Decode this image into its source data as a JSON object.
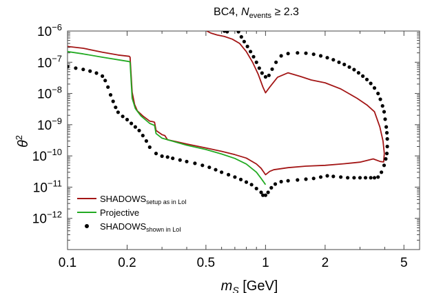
{
  "chart_data": {
    "type": "line",
    "title_parts": [
      "BC4, ",
      "N",
      "events",
      " ≥ 2.3"
    ],
    "xlabel_parts": [
      "m",
      "S",
      " [GeV]"
    ],
    "ylabel_parts": [
      "θ",
      "2"
    ],
    "xscale": "log",
    "yscale": "log",
    "xlim": [
      0.1,
      6.0
    ],
    "ylim": [
      1e-13,
      1e-06
    ],
    "grid": false,
    "legend_position": "bottom-left",
    "x_ticks": [
      {
        "value": 0.1,
        "label": "0.1"
      },
      {
        "value": 0.2,
        "label": "0.2"
      },
      {
        "value": 0.5,
        "label": "0.5"
      },
      {
        "value": 1,
        "label": "1"
      },
      {
        "value": 2,
        "label": "2"
      },
      {
        "value": 5,
        "label": "5"
      }
    ],
    "y_ticks": [
      {
        "value": 1e-12,
        "base": "10",
        "exp": "−12"
      },
      {
        "value": 1e-11,
        "base": "10",
        "exp": "−11"
      },
      {
        "value": 1e-10,
        "base": "10",
        "exp": "−10"
      },
      {
        "value": 1e-09,
        "base": "10",
        "exp": "−9"
      },
      {
        "value": 1e-08,
        "base": "10",
        "exp": "−8"
      },
      {
        "value": 1e-07,
        "base": "10",
        "exp": "−7"
      },
      {
        "value": 1e-06,
        "base": "10",
        "exp": "−6"
      }
    ],
    "series": [
      {
        "name_parts": [
          "SHADOWS",
          "setup as in LoI"
        ],
        "color": "#a31515",
        "style": "line",
        "points": [
          [
            0.1,
            3.2e-07
          ],
          [
            0.12,
            2.8e-07
          ],
          [
            0.15,
            2.1e-07
          ],
          [
            0.18,
            1.7e-07
          ],
          [
            0.205,
            1.55e-07
          ],
          [
            0.207,
            1.45e-07
          ],
          [
            0.212,
            1.1e-08
          ],
          [
            0.218,
            4.5e-09
          ],
          [
            0.225,
            2.8e-09
          ],
          [
            0.24,
            1.9e-09
          ],
          [
            0.26,
            1.3e-09
          ],
          [
            0.27,
            1.25e-09
          ],
          [
            0.275,
            1.2e-09
          ],
          [
            0.28,
            6.5e-10
          ],
          [
            0.3,
            4.8e-10
          ],
          [
            0.31,
            4.5e-10
          ],
          [
            0.32,
            3.3e-10
          ],
          [
            0.4,
            2.4e-10
          ],
          [
            0.5,
            1.8e-10
          ],
          [
            0.6,
            1.4e-10
          ],
          [
            0.7,
            1.1e-10
          ],
          [
            0.8,
            8.5e-11
          ],
          [
            0.9,
            5.5e-11
          ],
          [
            0.95,
            4e-11
          ],
          [
            1.0,
            2.5e-11
          ],
          [
            1.05,
            3.2e-11
          ],
          [
            1.1,
            3.6e-11
          ],
          [
            1.3,
            4.2e-11
          ],
          [
            1.6,
            4.7e-11
          ],
          [
            2.0,
            5e-11
          ],
          [
            2.5,
            5.6e-11
          ],
          [
            3.0,
            6.3e-11
          ],
          [
            3.5,
            8e-11
          ],
          [
            3.8,
            6.6e-11
          ],
          [
            3.95,
            6.4e-11
          ],
          [
            3.98,
            1.2e-10
          ],
          [
            3.92,
            3e-10
          ],
          [
            3.78,
            8.5e-10
          ],
          [
            3.55,
            2.6e-09
          ],
          [
            3.25,
            4.3e-09
          ],
          [
            2.9,
            7e-09
          ],
          [
            2.4,
            1.4e-08
          ],
          [
            2.0,
            2.2e-08
          ],
          [
            1.7,
            2.7e-08
          ],
          [
            1.5,
            3.5e-08
          ],
          [
            1.3,
            4.6e-08
          ],
          [
            1.15,
            3.3e-08
          ],
          [
            1.05,
            1.6e-08
          ],
          [
            1.0,
            1.05e-08
          ],
          [
            0.97,
            1.6e-08
          ],
          [
            0.92,
            4e-08
          ],
          [
            0.86,
            1e-07
          ],
          [
            0.8,
            2.2e-07
          ],
          [
            0.74,
            4e-07
          ],
          [
            0.68,
            5.5e-07
          ],
          [
            0.62,
            6.7e-07
          ],
          [
            0.57,
            7.5e-07
          ],
          [
            0.53,
            8.6e-07
          ],
          [
            0.505,
            1e-06
          ]
        ]
      },
      {
        "name_parts": [
          "Projective"
        ],
        "color": "#22aa22",
        "style": "line",
        "points": [
          [
            0.1,
            2.2e-07
          ],
          [
            0.12,
            1.85e-07
          ],
          [
            0.15,
            1.45e-07
          ],
          [
            0.18,
            1.2e-07
          ],
          [
            0.205,
            1.05e-07
          ],
          [
            0.207,
            1e-07
          ],
          [
            0.212,
            7e-09
          ],
          [
            0.22,
            3.3e-09
          ],
          [
            0.235,
            1.9e-09
          ],
          [
            0.26,
            1.1e-09
          ],
          [
            0.275,
            9.5e-10
          ],
          [
            0.28,
            5.2e-10
          ],
          [
            0.3,
            3.7e-10
          ],
          [
            0.4,
            2.2e-10
          ],
          [
            0.5,
            1.6e-10
          ],
          [
            0.6,
            1.15e-10
          ],
          [
            0.7,
            8.3e-11
          ],
          [
            0.8,
            5.5e-11
          ],
          [
            0.9,
            3e-11
          ],
          [
            0.95,
            1.9e-11
          ],
          [
            1.0,
            1.2e-11
          ]
        ]
      },
      {
        "name_parts": [
          "SHADOWS",
          "shown in LoI"
        ],
        "color": "#000000",
        "style": "points",
        "points": [
          [
            0.1,
            7.2e-08
          ],
          [
            0.11,
            6.5e-08
          ],
          [
            0.12,
            5.9e-08
          ],
          [
            0.13,
            5.2e-08
          ],
          [
            0.14,
            4.5e-08
          ],
          [
            0.15,
            3.6e-08
          ],
          [
            0.155,
            2.6e-08
          ],
          [
            0.16,
            1.6e-08
          ],
          [
            0.165,
            9e-09
          ],
          [
            0.17,
            5.6e-09
          ],
          [
            0.175,
            3.6e-09
          ],
          [
            0.18,
            2.5e-09
          ],
          [
            0.19,
            1.85e-09
          ],
          [
            0.2,
            1.45e-09
          ],
          [
            0.21,
            1.1e-09
          ],
          [
            0.22,
            8.5e-10
          ],
          [
            0.23,
            6.5e-10
          ],
          [
            0.24,
            4.5e-10
          ],
          [
            0.25,
            3e-10
          ],
          [
            0.26,
            1.9e-10
          ],
          [
            0.28,
            1.2e-10
          ],
          [
            0.3,
            9.8e-11
          ],
          [
            0.32,
            9.2e-11
          ],
          [
            0.34,
            8.4e-11
          ],
          [
            0.37,
            7.4e-11
          ],
          [
            0.4,
            6.6e-11
          ],
          [
            0.44,
            5.8e-11
          ],
          [
            0.48,
            5e-11
          ],
          [
            0.52,
            4.3e-11
          ],
          [
            0.56,
            3.6e-11
          ],
          [
            0.6,
            3e-11
          ],
          [
            0.65,
            2.5e-11
          ],
          [
            0.7,
            2.1e-11
          ],
          [
            0.75,
            1.75e-11
          ],
          [
            0.8,
            1.45e-11
          ],
          [
            0.85,
            1.2e-11
          ],
          [
            0.9,
            9e-12
          ],
          [
            0.95,
            6.8e-12
          ],
          [
            0.97,
            5.5e-12
          ],
          [
            1.0,
            5.5e-12
          ],
          [
            1.03,
            6.8e-12
          ],
          [
            1.07,
            9.5e-12
          ],
          [
            1.12,
            1.25e-11
          ],
          [
            1.2,
            1.5e-11
          ],
          [
            1.3,
            1.6e-11
          ],
          [
            1.45,
            1.7e-11
          ],
          [
            1.6,
            1.8e-11
          ],
          [
            1.75,
            1.9e-11
          ],
          [
            1.9,
            2.1e-11
          ],
          [
            2.05,
            2.3e-11
          ],
          [
            2.2,
            2.2e-11
          ],
          [
            2.4,
            2.1e-11
          ],
          [
            2.6,
            2e-11
          ],
          [
            2.8,
            2e-11
          ],
          [
            3.0,
            2e-11
          ],
          [
            3.2,
            2e-11
          ],
          [
            3.4,
            2e-11
          ],
          [
            3.55,
            2e-11
          ],
          [
            3.7,
            2.1e-11
          ],
          [
            3.85,
            3e-11
          ],
          [
            3.97,
            5e-11
          ],
          [
            4.05,
            8e-11
          ],
          [
            4.1,
            1.2e-10
          ],
          [
            4.12,
            2e-10
          ],
          [
            4.12,
            3.5e-10
          ],
          [
            4.1,
            5.5e-10
          ],
          [
            4.07,
            8.5e-10
          ],
          [
            4.02,
            1.5e-09
          ],
          [
            3.97,
            2.6e-09
          ],
          [
            3.9,
            4e-09
          ],
          [
            3.8,
            6.5e-09
          ],
          [
            3.7,
            1e-08
          ],
          [
            3.55,
            1.5e-08
          ],
          [
            3.4,
            2.1e-08
          ],
          [
            3.25,
            2.8e-08
          ],
          [
            3.1,
            3.6e-08
          ],
          [
            2.95,
            4.6e-08
          ],
          [
            2.8,
            5.8e-08
          ],
          [
            2.65,
            7e-08
          ],
          [
            2.5,
            8.5e-08
          ],
          [
            2.35,
            1e-07
          ],
          [
            2.2,
            1.2e-07
          ],
          [
            2.05,
            1.4e-07
          ],
          [
            1.9,
            1.6e-07
          ],
          [
            1.75,
            1.8e-07
          ],
          [
            1.6,
            1.95e-07
          ],
          [
            1.45,
            2e-07
          ],
          [
            1.3,
            1.9e-07
          ],
          [
            1.2,
            1.6e-07
          ],
          [
            1.13,
            1e-07
          ],
          [
            1.08,
            6e-08
          ],
          [
            1.04,
            3.8e-08
          ],
          [
            1.0,
            3.4e-08
          ],
          [
            0.96,
            4.5e-08
          ],
          [
            0.93,
            6.5e-08
          ],
          [
            0.9,
            1e-07
          ],
          [
            0.87,
            1.5e-07
          ],
          [
            0.84,
            2.2e-07
          ],
          [
            0.81,
            3.2e-07
          ],
          [
            0.78,
            4.6e-07
          ],
          [
            0.755,
            6.5e-07
          ],
          [
            0.73,
            9.5e-07
          ],
          [
            0.64,
            9.5e-07
          ],
          [
            0.62,
            1e-06
          ]
        ]
      }
    ]
  }
}
